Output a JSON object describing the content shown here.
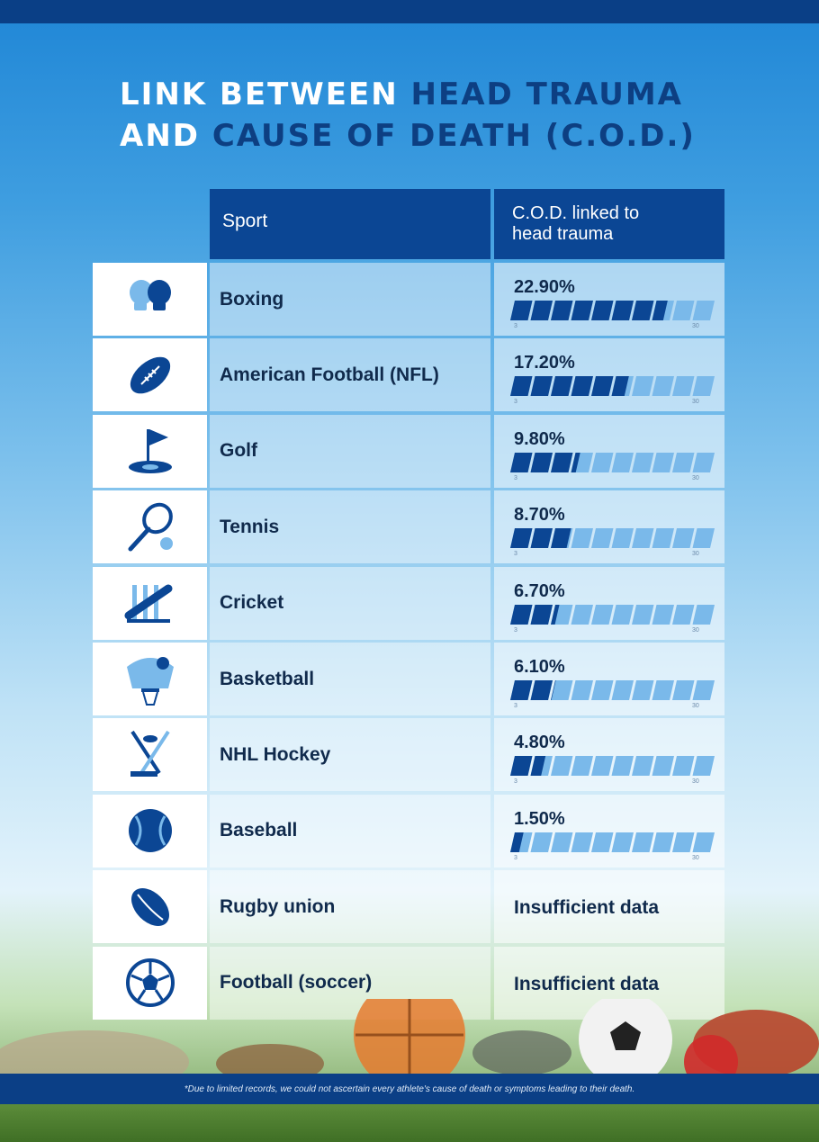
{
  "title": {
    "line1_white": "LINK BETWEEN ",
    "line1_dark": "HEAD TRAUMA",
    "line2_white": "AND ",
    "line2_dark": "CAUSE OF DEATH (C.O.D.)"
  },
  "header": {
    "sport": "Sport",
    "cod_line1": "C.O.D. linked to",
    "cod_line2": "head trauma"
  },
  "footnote": "*Due to limited records, we could not ascertain every athlete's  cause of death or symptoms leading to their death.",
  "colors": {
    "dark_blue": "#0b4694",
    "light_blue": "#7ab9ea",
    "text": "#102a4c"
  },
  "chart_data": {
    "type": "bar",
    "title": "LINK BETWEEN HEAD TRAUMA AND CAUSE OF DEATH (C.O.D.)",
    "categories": [
      "Boxing",
      "American Football (NFL)",
      "Golf",
      "Tennis",
      "Cricket",
      "Basketball",
      "NHL Hockey",
      "Baseball",
      "Rugby union",
      "Football (soccer)"
    ],
    "values": [
      22.9,
      17.2,
      9.8,
      8.7,
      6.7,
      6.1,
      4.8,
      1.5,
      null,
      null
    ],
    "labels": [
      "22.90%",
      "17.20%",
      "9.80%",
      "8.70%",
      "6.70%",
      "6.10%",
      "4.80%",
      "1.50%",
      "Insufficient data",
      "Insufficient data"
    ],
    "icons": [
      "boxing-gloves-icon",
      "american-football-icon",
      "golf-flag-icon",
      "tennis-racket-icon",
      "cricket-bat-icon",
      "basketball-hoop-icon",
      "hockey-sticks-icon",
      "baseball-icon",
      "rugby-ball-icon",
      "soccer-ball-icon"
    ],
    "scale_min_label": "3",
    "scale_max_label": "30",
    "xlim": [
      0,
      30
    ],
    "segments": 10
  }
}
